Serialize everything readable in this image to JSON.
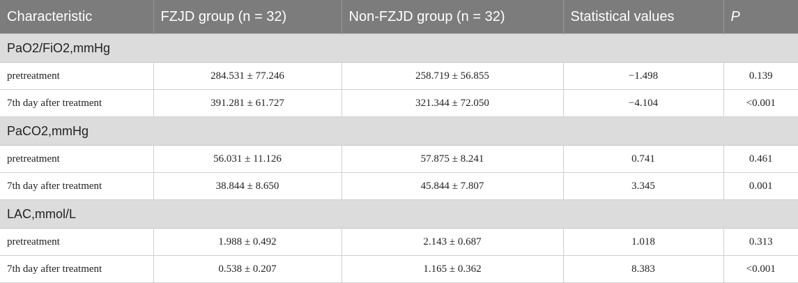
{
  "headers": [
    "Characteristic",
    "FZJD group (n = 32)",
    "Non-FZJD group (n = 32)",
    "Statistical values",
    "P"
  ],
  "sections": [
    {
      "title": "PaO2/FiO2,mmHg",
      "rows": [
        [
          "pretreatment",
          "284.531 ± 77.246",
          "258.719 ± 56.855",
          "−1.498",
          "0.139"
        ],
        [
          "7th day after treatment",
          "391.281 ± 61.727",
          "321.344 ± 72.050",
          "−4.104",
          "<0.001"
        ]
      ]
    },
    {
      "title": "PaCO2,mmHg",
      "rows": [
        [
          "pretreatment",
          "56.031 ± 11.126",
          "57.875 ± 8.241",
          "0.741",
          "0.461"
        ],
        [
          "7th day after treatment",
          "38.844 ± 8.650",
          "45.844 ± 7.807",
          "3.345",
          "0.001"
        ]
      ]
    },
    {
      "title": "LAC,mmol/L",
      "rows": [
        [
          "pretreatment",
          "1.988 ± 0.492",
          "2.143 ± 0.687",
          "1.018",
          "0.313"
        ],
        [
          "7th day after treatment",
          "0.538 ± 0.207",
          "1.165 ± 0.362",
          "8.383",
          "<0.001"
        ]
      ]
    }
  ]
}
